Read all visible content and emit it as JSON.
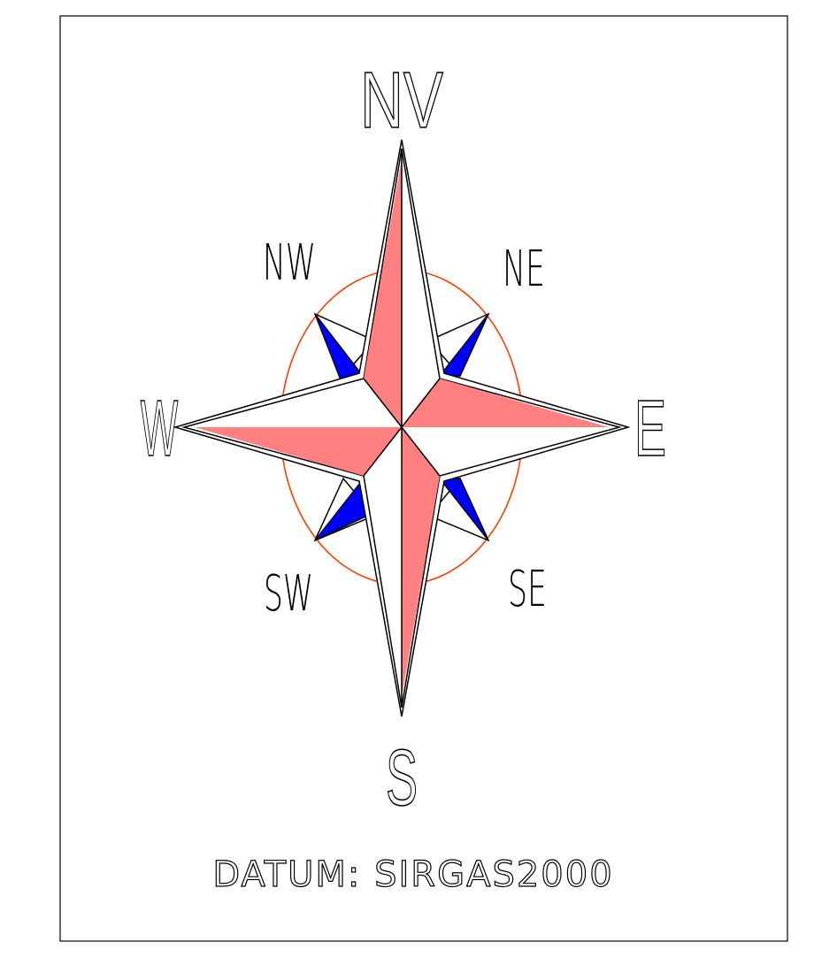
{
  "directions": {
    "north": "NV",
    "northeast": "NE",
    "east": "E",
    "southeast": "SE",
    "south": "S",
    "southwest": "SW",
    "west": "W",
    "northwest": "NW"
  },
  "datum": "DATUM: SIRGAS2000"
}
